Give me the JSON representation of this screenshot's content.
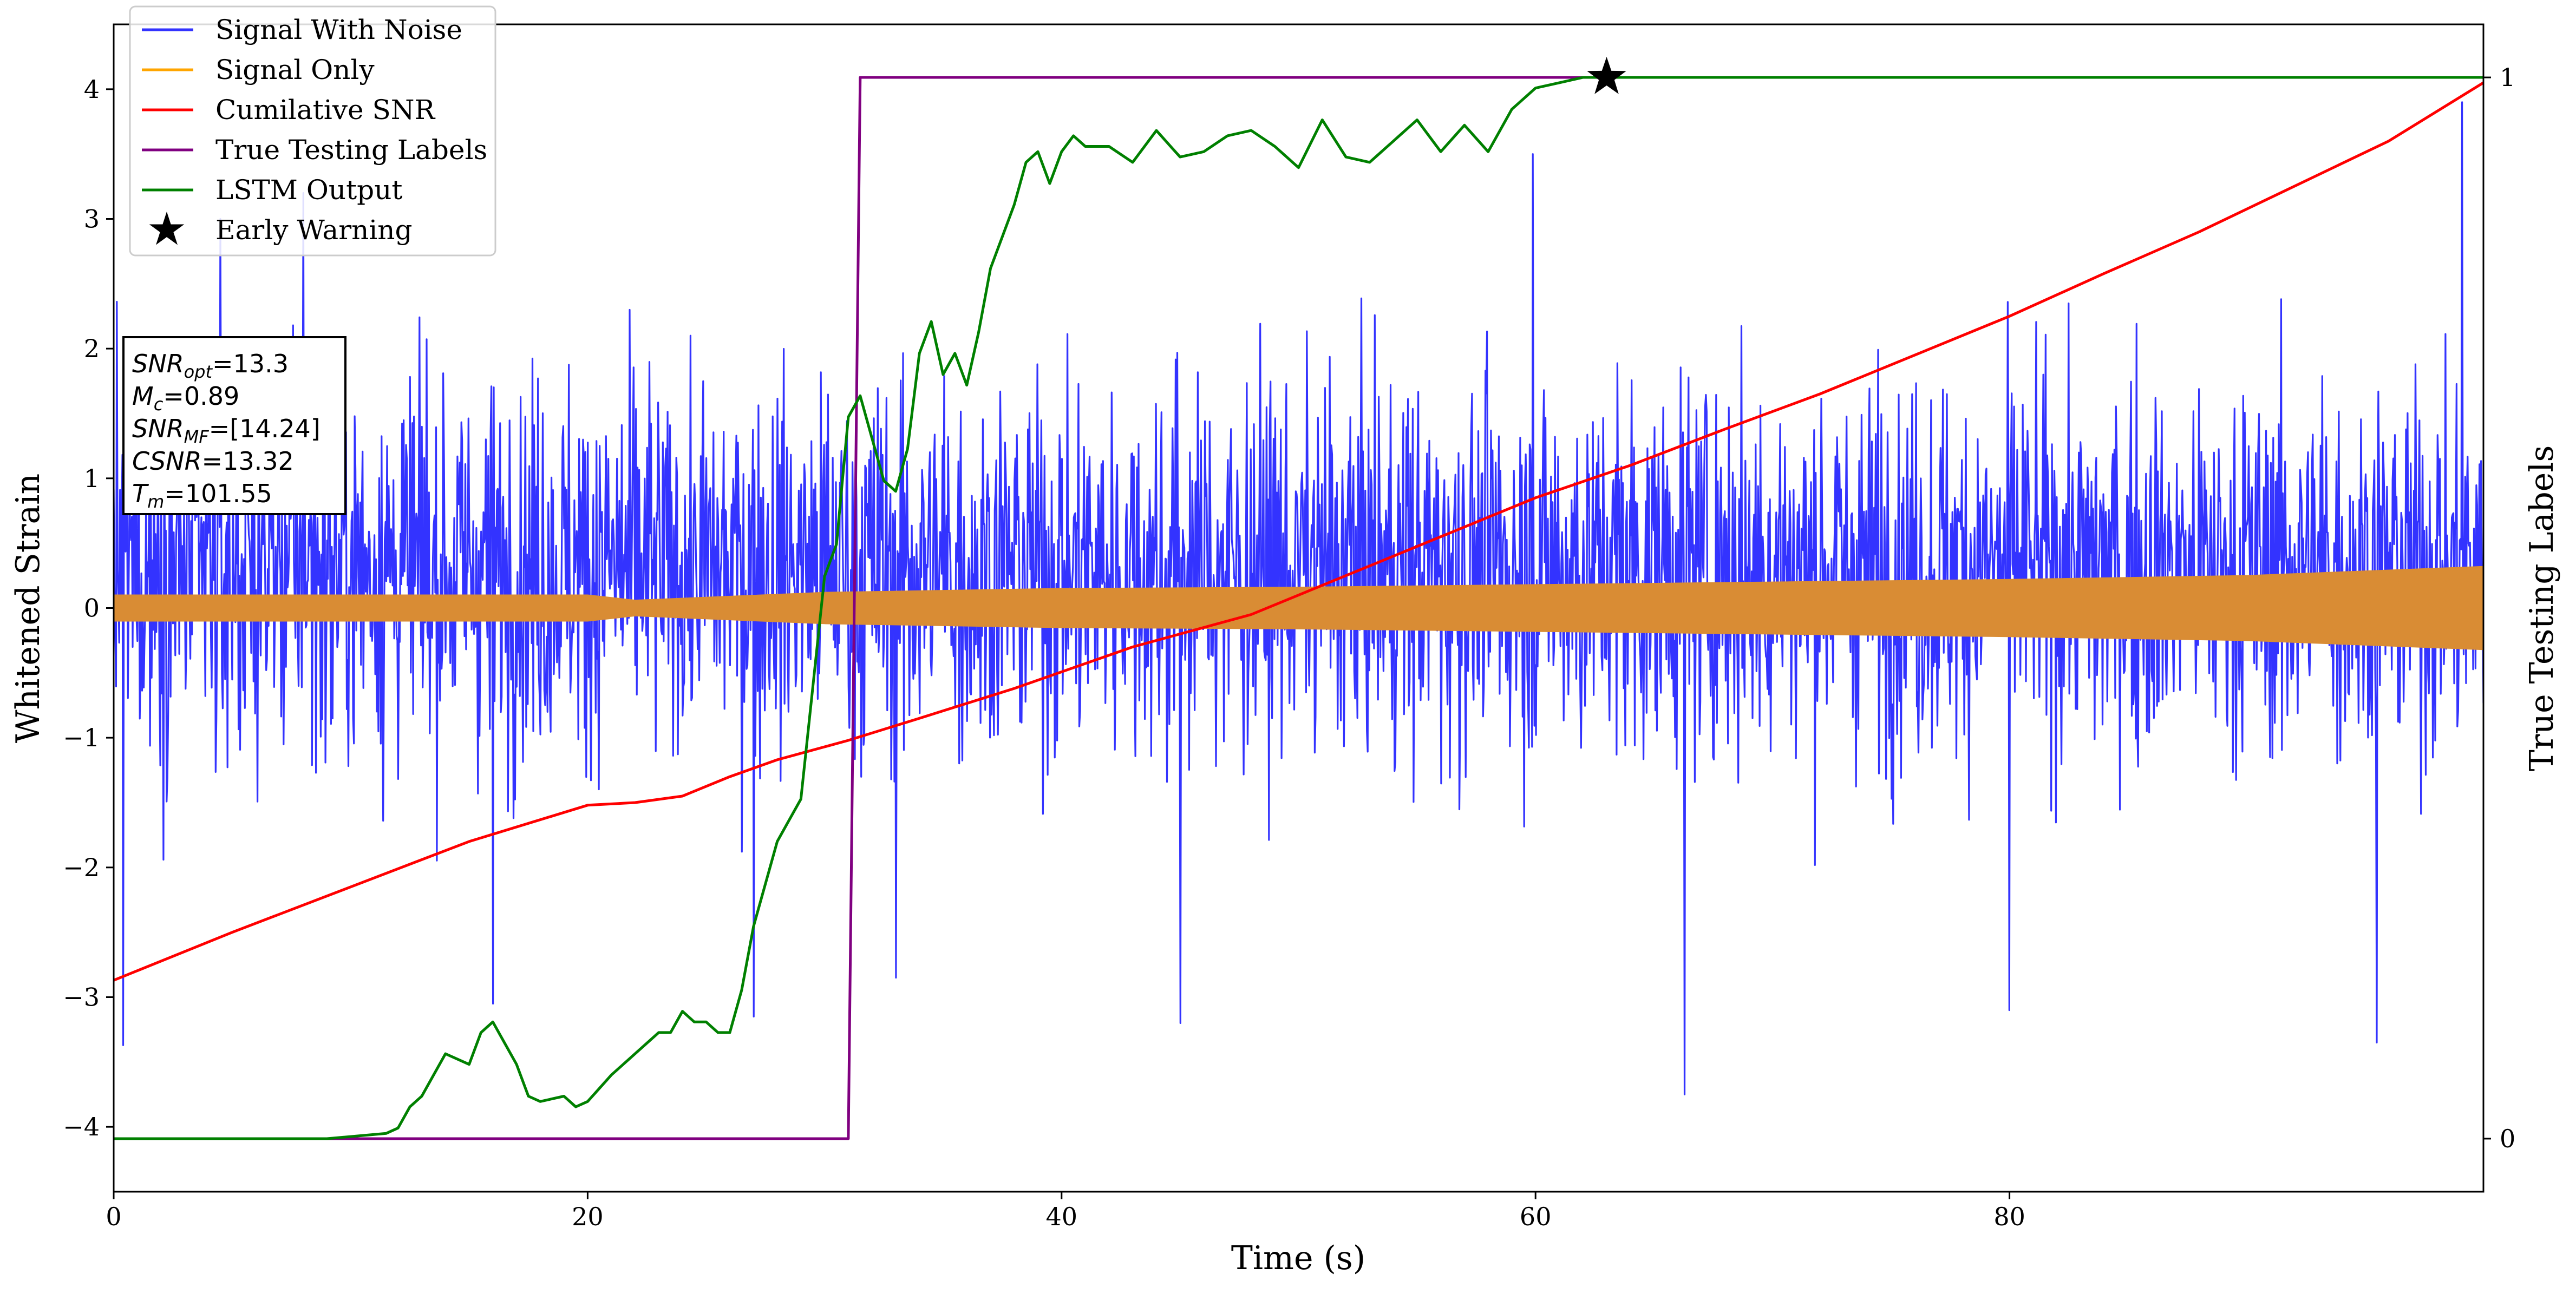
{
  "chart_data": {
    "type": "line",
    "xlabel": "Time (s)",
    "ylabel": "Whitened Strain",
    "y2label": "True Testing Labels",
    "xlim": [
      0,
      100
    ],
    "ylim": [
      -4.5,
      4.5
    ],
    "y2lim": [
      -0.05,
      1.05
    ],
    "xticks": [
      0,
      20,
      40,
      60,
      80
    ],
    "xtick_labels": [
      "0",
      "20",
      "40",
      "60",
      "80"
    ],
    "yticks": [
      -4,
      -3,
      -2,
      -1,
      0,
      1,
      2,
      3,
      4
    ],
    "ytick_labels": [
      "−4",
      "−3",
      "−2",
      "−1",
      "0",
      "1",
      "2",
      "3",
      "4"
    ],
    "y2ticks": [
      0,
      1
    ],
    "y2tick_labels": [
      "0",
      "1"
    ],
    "legend": {
      "placement": "top-left",
      "entries": [
        {
          "label": "Signal With Noise",
          "color": "#3333ff",
          "marker": "line"
        },
        {
          "label": "Signal Only",
          "color": "#ffa500",
          "marker": "line"
        },
        {
          "label": "Cumilative SNR",
          "color": "#ff0000",
          "marker": "line"
        },
        {
          "label": "True Testing Labels",
          "color": "#800080",
          "marker": "line"
        },
        {
          "label": "LSTM Output",
          "color": "#008000",
          "marker": "line"
        },
        {
          "label": "Early Warning",
          "color": "#000000",
          "marker": "star"
        }
      ]
    },
    "info_box": {
      "lines": [
        {
          "name": "SNR",
          "sub": "opt",
          "value": "=13.3"
        },
        {
          "name": "M",
          "sub": "c",
          "value": "=0.89"
        },
        {
          "name": "SNR",
          "sub": "MF",
          "value": "=[14.24]"
        },
        {
          "name": "CSNR",
          "sub": "",
          "value": "=13.32"
        },
        {
          "name": "T",
          "sub": "m",
          "value": "=101.55"
        }
      ]
    },
    "series": [
      {
        "name": "Signal With Noise",
        "color": "#3333ff",
        "style": "noise-band",
        "x_range": [
          0,
          100
        ],
        "typical_range": [
          -0.9,
          1.5
        ],
        "extremes": [
          {
            "x": 0.4,
            "y": -3.37
          },
          {
            "x": 4.5,
            "y": 3.0
          },
          {
            "x": 8.0,
            "y": 3.2
          },
          {
            "x": 16.0,
            "y": -3.05
          },
          {
            "x": 27.0,
            "y": -3.15
          },
          {
            "x": 33.0,
            "y": -2.85
          },
          {
            "x": 45.0,
            "y": -3.2
          },
          {
            "x": 59.9,
            "y": 3.5
          },
          {
            "x": 66.3,
            "y": -3.75
          },
          {
            "x": 80.0,
            "y": -3.1
          },
          {
            "x": 95.5,
            "y": -3.35
          },
          {
            "x": 99.1,
            "y": 3.9
          }
        ]
      },
      {
        "name": "Signal Only",
        "color": "#d98c34",
        "style": "envelope",
        "x": [
          0,
          10,
          20,
          22,
          30,
          40,
          50,
          60,
          70,
          80,
          90,
          100
        ],
        "amplitude": [
          0.1,
          0.1,
          0.1,
          0.06,
          0.12,
          0.15,
          0.16,
          0.18,
          0.2,
          0.22,
          0.25,
          0.32
        ]
      },
      {
        "name": "Cumilative SNR",
        "color": "#ff0000",
        "x": [
          0,
          5,
          10,
          15,
          20,
          22,
          24,
          26,
          28,
          31,
          34,
          38,
          43,
          48,
          52,
          56,
          60,
          64,
          68,
          72,
          76,
          80,
          84,
          88,
          92,
          96,
          100
        ],
        "y": [
          -2.87,
          -2.5,
          -2.15,
          -1.8,
          -1.52,
          -1.5,
          -1.45,
          -1.3,
          -1.17,
          -1.02,
          -0.85,
          -0.62,
          -0.3,
          -0.05,
          0.25,
          0.55,
          0.85,
          1.1,
          1.38,
          1.65,
          1.95,
          2.25,
          2.58,
          2.9,
          3.25,
          3.6,
          4.05
        ]
      },
      {
        "name": "True Testing Labels",
        "color": "#800080",
        "axis": "right",
        "x": [
          0,
          31.0,
          31.5,
          63
        ],
        "y": [
          0,
          0,
          1,
          1
        ]
      },
      {
        "name": "LSTM Output",
        "color": "#008000",
        "axis": "right",
        "x": [
          0,
          9,
          11.5,
          12,
          12.5,
          13,
          14,
          15,
          15.5,
          16,
          16.5,
          17,
          17.5,
          18,
          19,
          19.5,
          20,
          21,
          22,
          23,
          23.5,
          24,
          24.5,
          25,
          25.5,
          26,
          26.5,
          27,
          28,
          28.5,
          29,
          30,
          30.5,
          31,
          31.5,
          32,
          32.5,
          33,
          33.5,
          34,
          34.5,
          35,
          35.5,
          36,
          36.5,
          37,
          37.5,
          38,
          38.5,
          39,
          39.5,
          40,
          40.5,
          41,
          42,
          43,
          44,
          45,
          46,
          47,
          48,
          49,
          50,
          51,
          52,
          53,
          54,
          55,
          56,
          57,
          58,
          59,
          60,
          61,
          62,
          63,
          100
        ],
        "y": [
          0.0,
          0.0,
          0.005,
          0.01,
          0.03,
          0.04,
          0.08,
          0.07,
          0.1,
          0.11,
          0.09,
          0.07,
          0.04,
          0.035,
          0.04,
          0.03,
          0.035,
          0.06,
          0.08,
          0.1,
          0.1,
          0.12,
          0.11,
          0.11,
          0.1,
          0.1,
          0.14,
          0.2,
          0.28,
          0.3,
          0.32,
          0.53,
          0.56,
          0.68,
          0.7,
          0.66,
          0.62,
          0.61,
          0.65,
          0.74,
          0.77,
          0.72,
          0.74,
          0.71,
          0.76,
          0.82,
          0.85,
          0.88,
          0.92,
          0.93,
          0.9,
          0.93,
          0.945,
          0.935,
          0.935,
          0.92,
          0.95,
          0.925,
          0.93,
          0.945,
          0.95,
          0.935,
          0.915,
          0.96,
          0.925,
          0.92,
          0.94,
          0.96,
          0.93,
          0.955,
          0.93,
          0.97,
          0.99,
          0.995,
          1.0,
          1.0,
          1.0
        ]
      }
    ],
    "annotations": [
      {
        "type": "star",
        "label": "Early Warning",
        "x": 63,
        "y": 1.0,
        "axis": "right",
        "color": "#000000"
      }
    ]
  }
}
